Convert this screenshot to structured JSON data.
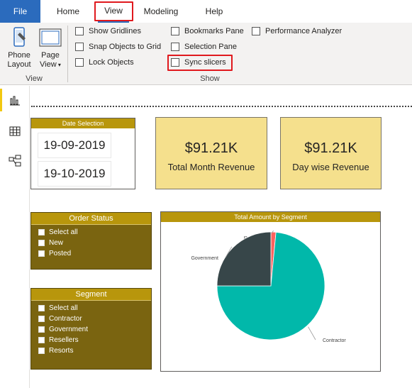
{
  "tabs": [
    {
      "label": "File"
    },
    {
      "label": "Home"
    },
    {
      "label": "View"
    },
    {
      "label": "Modeling"
    },
    {
      "label": "Help"
    }
  ],
  "ribbon": {
    "view_group": {
      "label": "View",
      "phone_layout": "Phone Layout",
      "phone_layout_line1": "Phone",
      "phone_layout_line2": "Layout",
      "page_view_line1": "Page",
      "page_view_line2": "View"
    },
    "show_group": {
      "label": "Show",
      "checkboxes": [
        {
          "label": "Show Gridlines",
          "checked": false
        },
        {
          "label": "Snap Objects to Grid",
          "checked": false
        },
        {
          "label": "Lock Objects",
          "checked": false
        },
        {
          "label": "Bookmarks Pane",
          "checked": false
        },
        {
          "label": "Selection Pane",
          "checked": false
        },
        {
          "label": "Sync slicers",
          "checked": false
        },
        {
          "label": "Performance Analyzer",
          "checked": false
        }
      ]
    }
  },
  "rail": {
    "icons": [
      "report-view-icon",
      "data-view-icon",
      "model-view-icon"
    ]
  },
  "canvas": {
    "date_slicer": {
      "title": "Date Selection",
      "start": "19-09-2019",
      "end": "19-10-2019"
    },
    "kpis": [
      {
        "value": "$91.21K",
        "label": "Total Month Revenue"
      },
      {
        "value": "$91.21K",
        "label": "Day wise Revenue"
      }
    ],
    "order_status": {
      "title": "Order Status",
      "items": [
        "Select all",
        "New",
        "Posted"
      ]
    },
    "segment": {
      "title": "Segment",
      "items": [
        "Select all",
        "Contractor",
        "Government",
        "Resellers",
        "Resorts"
      ]
    },
    "pie_chart": {
      "title": "Total Amount by Segment"
    }
  },
  "colors": {
    "accent_blue": "#2b6bbd",
    "highlight_red": "#e0191e",
    "slicer_header": "#b8960c",
    "slicer_body": "#7a6410",
    "kpi_fill": "#f5e08d"
  },
  "chart_data": {
    "type": "pie",
    "title": "Total Amount by Segment",
    "slices": [
      {
        "label": "Contractor",
        "value": 73.5,
        "color": "#01b8aa"
      },
      {
        "label": "Government",
        "value": 25.0,
        "color": "#374649"
      },
      {
        "label": "Resorts",
        "value": 1.5,
        "color": "#fd625e"
      }
    ],
    "legend": "labels"
  }
}
